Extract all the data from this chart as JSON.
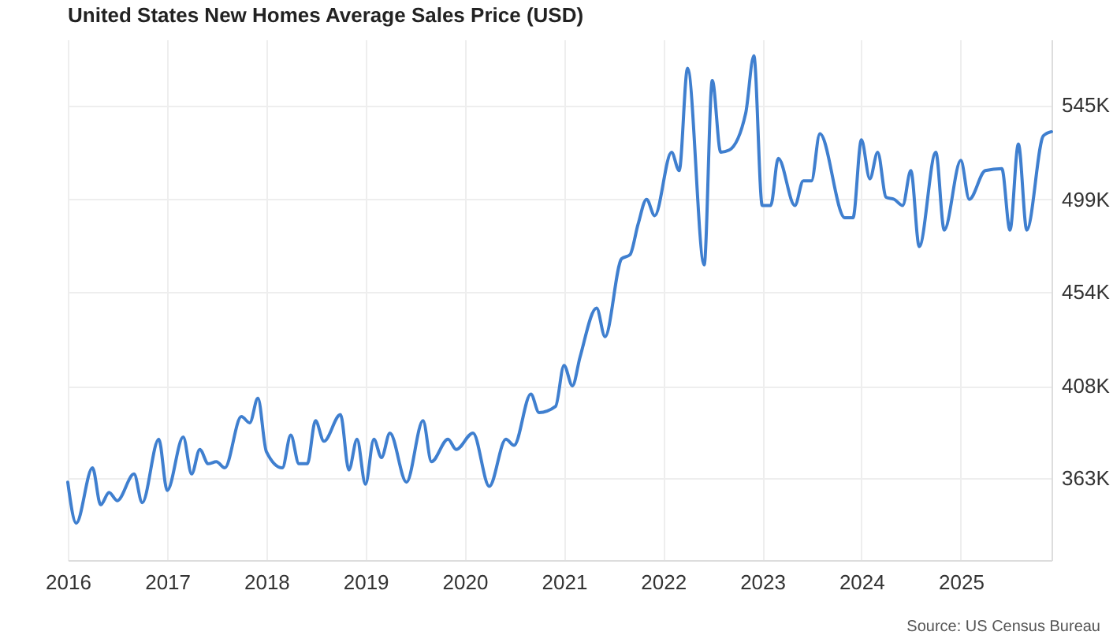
{
  "chart_data": {
    "type": "line",
    "title": "United States New Homes Average Sales Price (USD)",
    "annotations": [
      "Source: US Census Bureau"
    ],
    "x": [
      "2016-01",
      "2016-02",
      "2016-04",
      "2016-05",
      "2016-06",
      "2016-07",
      "2016-09",
      "2016-10",
      "2016-12",
      "2017-01",
      "2017-03",
      "2017-04",
      "2017-05",
      "2017-06",
      "2017-07",
      "2017-08",
      "2017-10",
      "2017-11",
      "2017-12",
      "2018-01",
      "2018-03",
      "2018-04",
      "2018-05",
      "2018-06",
      "2018-07",
      "2018-08",
      "2018-10",
      "2018-11",
      "2018-12",
      "2019-01",
      "2019-02",
      "2019-03",
      "2019-04",
      "2019-06",
      "2019-08",
      "2019-09",
      "2019-11",
      "2019-12",
      "2020-02",
      "2020-04",
      "2020-06",
      "2020-07",
      "2020-09",
      "2020-10",
      "2020-12",
      "2021-01",
      "2021-02",
      "2021-03",
      "2021-05",
      "2021-06",
      "2021-08",
      "2021-09",
      "2021-10",
      "2021-11",
      "2021-12",
      "2022-02",
      "2022-03",
      "2022-04",
      "2022-06",
      "2022-07",
      "2022-08",
      "2022-09",
      "2022-11",
      "2022-12",
      "2023-01",
      "2023-02",
      "2023-03",
      "2023-05",
      "2023-06",
      "2023-07",
      "2023-08",
      "2023-11",
      "2023-12",
      "2024-01",
      "2024-02",
      "2024-03",
      "2024-04",
      "2024-05",
      "2024-06",
      "2024-07",
      "2024-08",
      "2024-10",
      "2024-11",
      "2025-01",
      "2025-02",
      "2025-04",
      "2025-06",
      "2025-07",
      "2025-08",
      "2025-09",
      "2025-11",
      "2025-12"
    ],
    "series": [
      {
        "color": "#3f7fcf",
        "values": [
          361000,
          341000,
          368000,
          350000,
          356000,
          352000,
          365000,
          351000,
          382000,
          357000,
          383000,
          365000,
          377000,
          370000,
          371000,
          368000,
          393000,
          390000,
          402000,
          376000,
          368000,
          384000,
          370000,
          370000,
          391000,
          381000,
          394000,
          367000,
          382000,
          360000,
          382000,
          373000,
          385000,
          361000,
          391000,
          371000,
          382000,
          377000,
          385000,
          359000,
          382000,
          379000,
          404000,
          395000,
          398000,
          418000,
          408000,
          422000,
          446000,
          432000,
          470000,
          472000,
          487000,
          499000,
          491000,
          522000,
          513000,
          563000,
          467000,
          557000,
          522000,
          523000,
          541000,
          569000,
          496000,
          496000,
          519000,
          496000,
          508000,
          508000,
          531000,
          490000,
          490000,
          528000,
          509000,
          522000,
          500000,
          499000,
          496000,
          513000,
          476000,
          522000,
          484000,
          518000,
          499000,
          513000,
          514000,
          484000,
          526000,
          484000,
          530000,
          532000
        ]
      }
    ],
    "xlim": [
      "2016-01",
      "2025-12"
    ],
    "xticks": [
      "2016",
      "2017",
      "2018",
      "2019",
      "2020",
      "2021",
      "2022",
      "2023",
      "2024",
      "2025"
    ],
    "ylim": [
      323000,
      577000
    ],
    "yticks": [
      {
        "value": 363000,
        "label": "363K"
      },
      {
        "value": 408000,
        "label": "408K"
      },
      {
        "value": 454000,
        "label": "454K"
      },
      {
        "value": 499000,
        "label": "499K"
      },
      {
        "value": 545000,
        "label": "545K"
      }
    ],
    "grid": true,
    "marker": "none",
    "line_style": "solid"
  }
}
